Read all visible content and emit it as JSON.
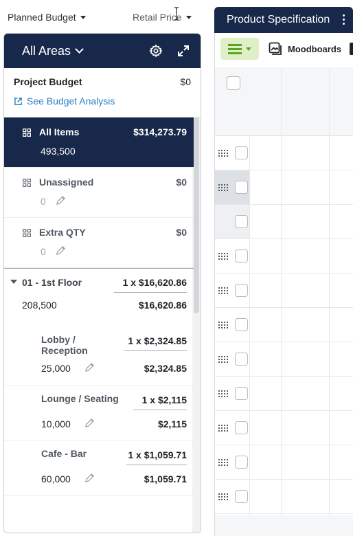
{
  "top_filters": {
    "left_label": "Planned Budget",
    "right_label": "Retail Price"
  },
  "areas_panel": {
    "title": "All Areas",
    "settings_icon": "gear-icon",
    "expand_icon": "expand-icon",
    "project_budget": {
      "label": "Project Budget",
      "value": "$0",
      "link_label": "See Budget Analysis"
    },
    "items": [
      {
        "name": "All Items",
        "amount": "$314,273.79",
        "qty": "493,500",
        "selected": true
      },
      {
        "name": "Unassigned",
        "amount": "$0",
        "qty": "0",
        "selected": false
      },
      {
        "name": "Extra QTY",
        "amount": "$0",
        "qty": "0",
        "selected": false
      }
    ],
    "floor": {
      "name": "01 - 1st Floor",
      "multiplier": "1 x $16,620.86",
      "qty": "208,500",
      "total": "$16,620.86"
    },
    "rooms": [
      {
        "name": "Lobby / Reception",
        "multiplier": "1 x $2,324.85",
        "qty": "25,000",
        "total": "$2,324.85"
      },
      {
        "name": "Lounge / Seating",
        "multiplier": "1 x $2,115",
        "qty": "10,000",
        "total": "$2,115"
      },
      {
        "name": "Cafe - Bar",
        "multiplier": "1 x $1,059.71",
        "qty": "60,000",
        "total": "$1,059.71"
      }
    ]
  },
  "spec_panel": {
    "title": "Product Specification",
    "toolbar": {
      "menu_icon": "hamburger-icon",
      "moodboards_label": "Moodboards"
    }
  },
  "colors": {
    "navy": "#18284a",
    "link_blue": "#2a7fc4",
    "menu_green": "#5ba51e",
    "menu_green_bg": "#dff0c8"
  }
}
